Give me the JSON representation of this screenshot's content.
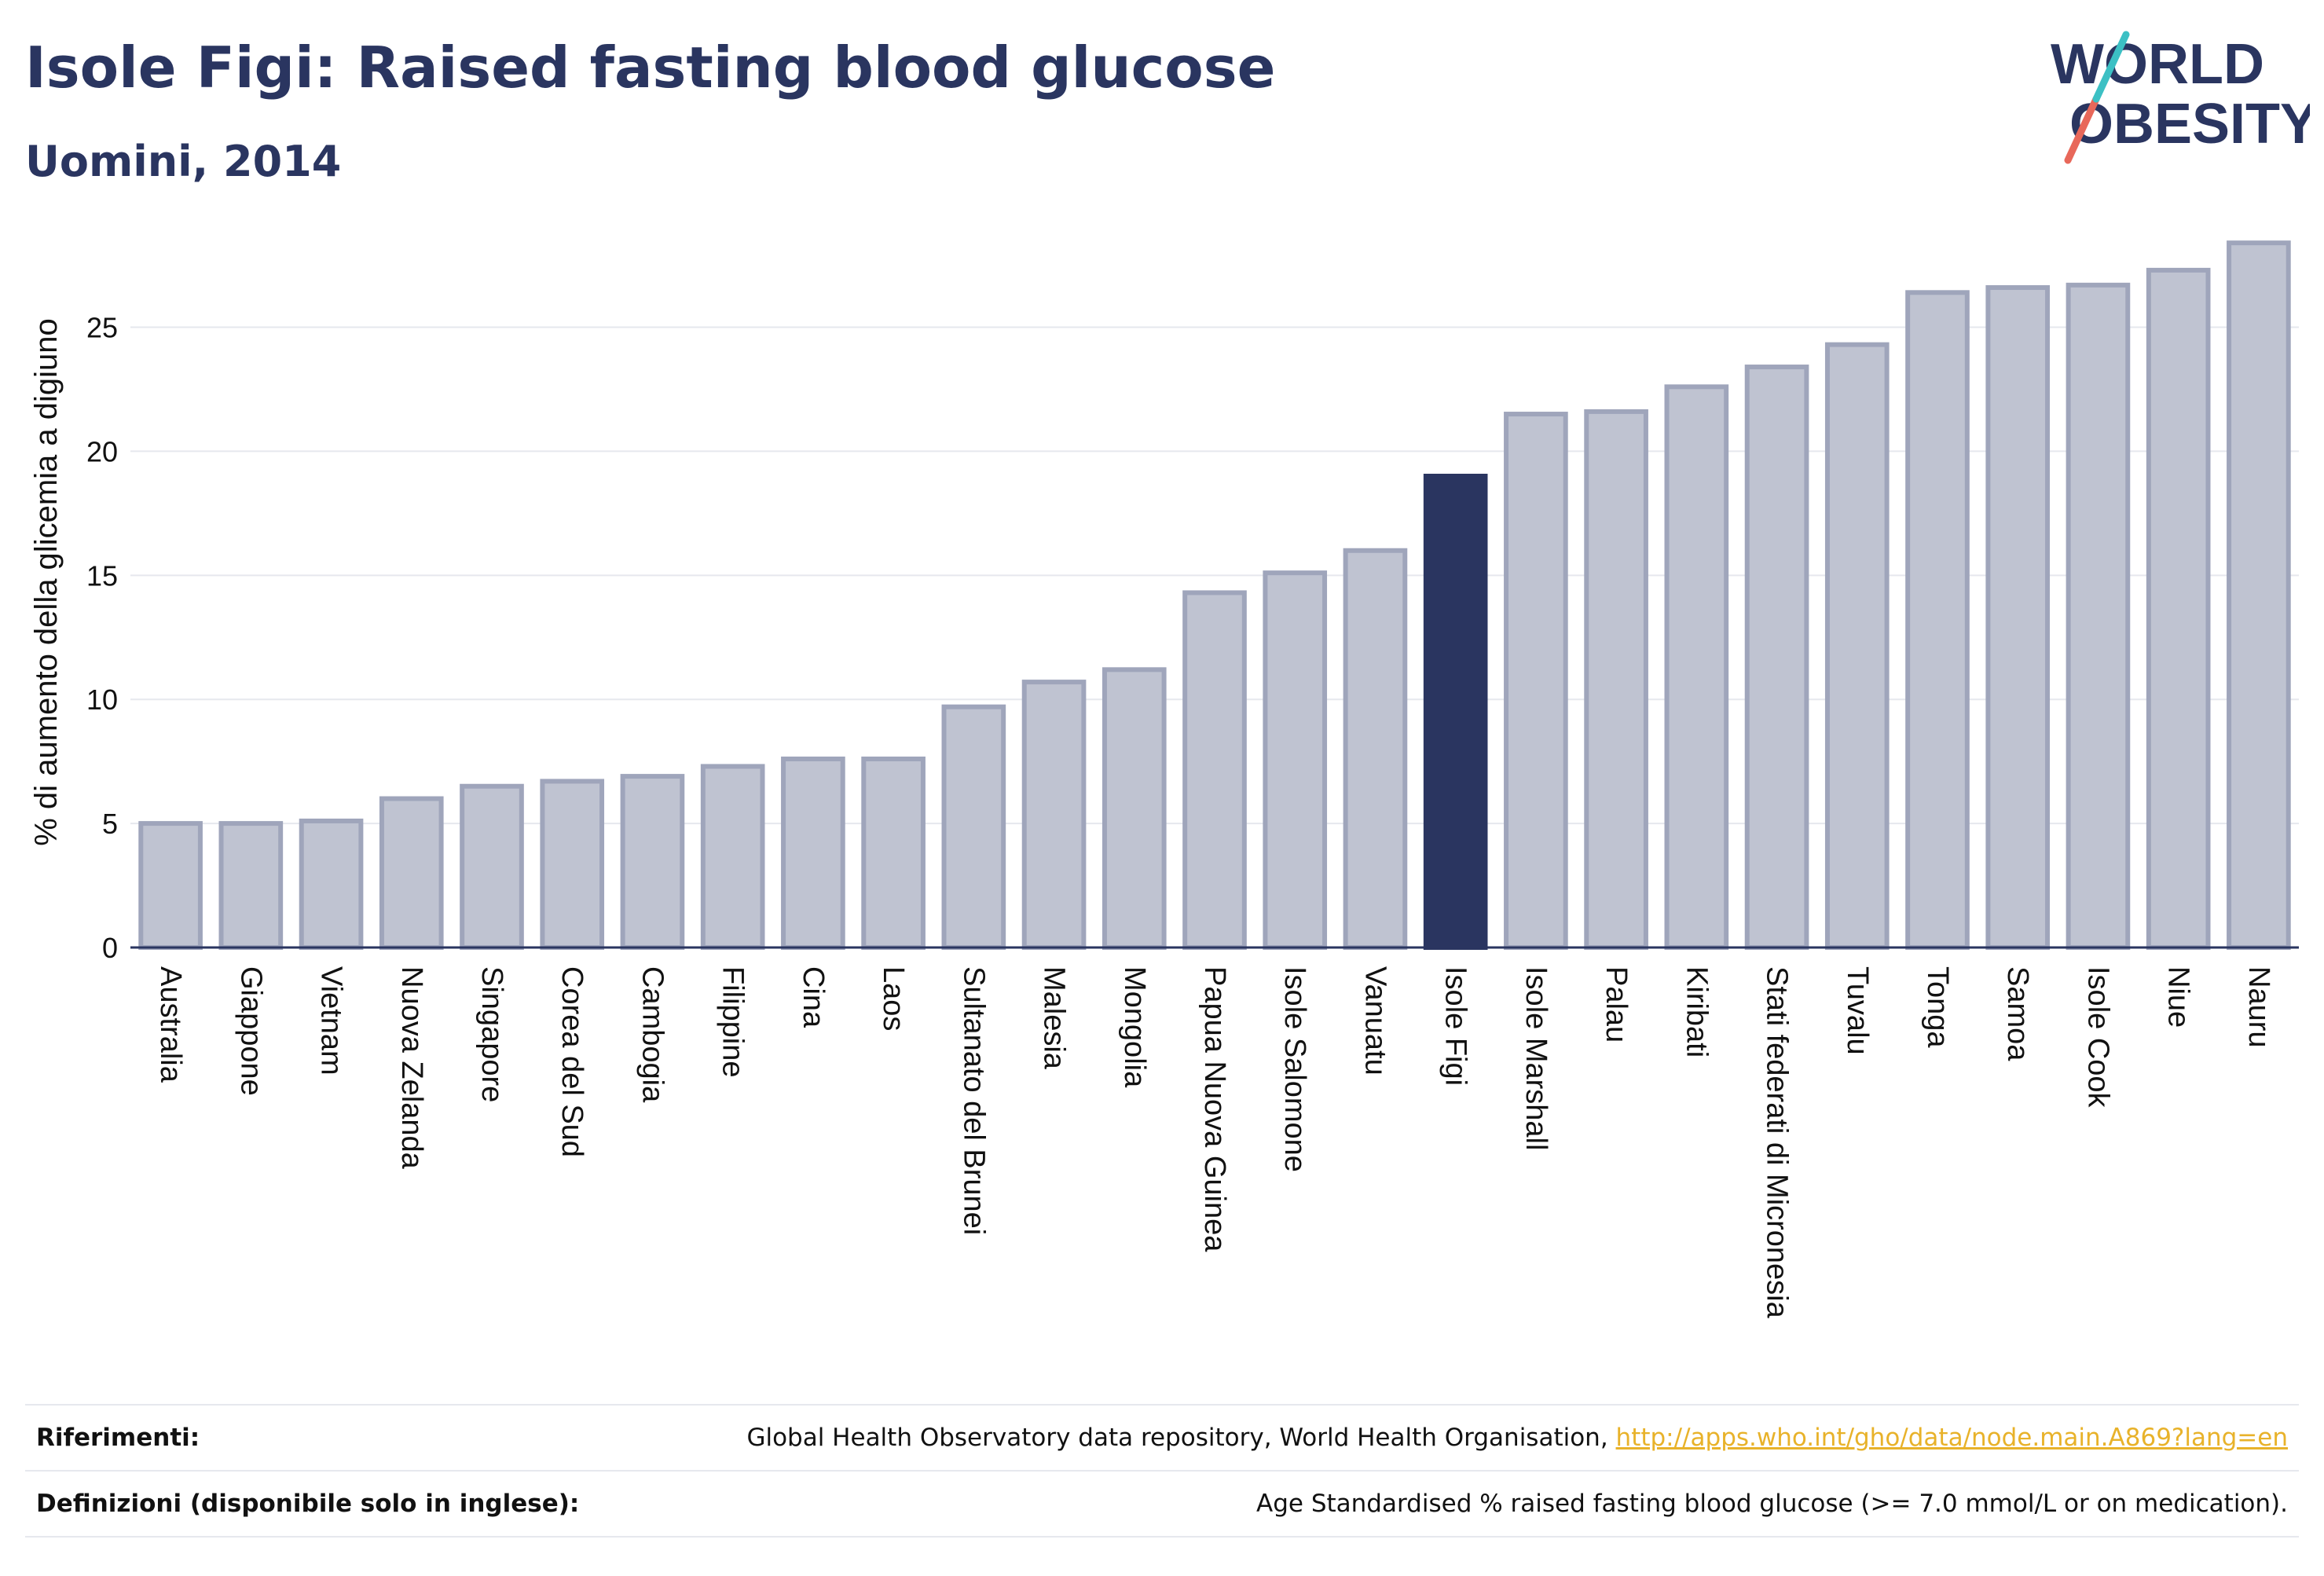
{
  "header": {
    "title": "Isole Figi: Raised fasting blood glucose",
    "subtitle": "Uomini, 2014"
  },
  "logo": {
    "line1": "WORLD",
    "line2": "OBESITY"
  },
  "chart_data": {
    "type": "bar",
    "title": "Isole Figi: Raised fasting blood glucose",
    "subtitle": "Uomini, 2014",
    "ylabel": "% di aumento della glicemia a digiuno",
    "xlabel": "",
    "ylim": [
      0,
      28.5
    ],
    "yticks": [
      0,
      5,
      10,
      15,
      20,
      25
    ],
    "grid": true,
    "highlight": "Isole Figi",
    "categories": [
      "Australia",
      "Giappone",
      "Vietnam",
      "Nuova Zelanda",
      "Singapore",
      "Corea del Sud",
      "Cambogia",
      "Filippine",
      "Cina",
      "Laos",
      "Sultanato del Brunei",
      "Malesia",
      "Mongolia",
      "Papua Nuova Guinea",
      "Isole Salomone",
      "Vanuatu",
      "Isole Figi",
      "Isole Marshall",
      "Palau",
      "Kiribati",
      "Stati federati di Micronesia",
      "Tuvalu",
      "Tonga",
      "Samoa",
      "Isole Cook",
      "Niue",
      "Nauru"
    ],
    "values": [
      5.0,
      5.0,
      5.1,
      6.0,
      6.5,
      6.7,
      6.9,
      7.3,
      7.6,
      7.6,
      9.7,
      10.7,
      11.2,
      14.3,
      15.1,
      16.0,
      19.0,
      21.5,
      21.6,
      22.6,
      23.4,
      24.3,
      26.4,
      26.6,
      26.7,
      27.3,
      28.4
    ],
    "colors": {
      "bar": "#bfc3d1",
      "bar_border": "#9fa5bb",
      "highlight": "#2a3560",
      "axis": "#2a3560",
      "grid": "#e6e8ee"
    }
  },
  "references": {
    "rows": [
      {
        "label": "Riferimenti:",
        "text": "Global Health Observatory data repository, World Health Organisation, ",
        "link": "http://apps.who.int/gho/data/node.main.A869?lang=en"
      },
      {
        "label": "Definizioni (disponibile solo in inglese):",
        "text": "Age Standardised % raised fasting blood glucose (>= 7.0 mmol/L or on medication).",
        "link": ""
      }
    ]
  }
}
